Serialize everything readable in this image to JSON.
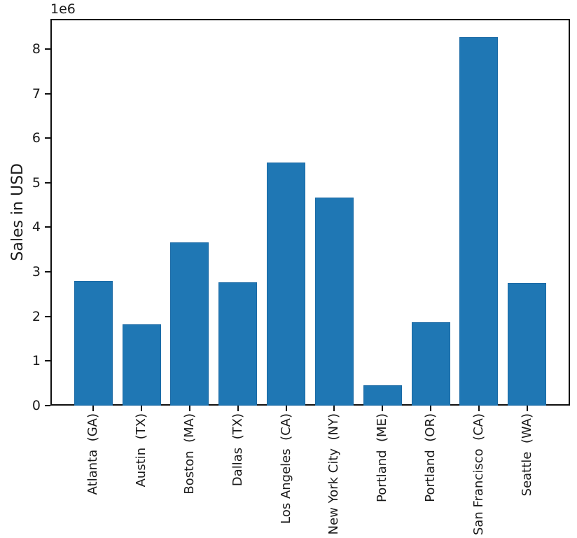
{
  "figure": {
    "offset_label": "1e6",
    "background_color": "#ffffff",
    "text_color": "#1a1a1a",
    "spine_color": "#0f0f0f"
  },
  "chart_data": {
    "type": "bar",
    "title": "",
    "xlabel": "",
    "ylabel": "Sales in USD",
    "categories": [
      "Atlanta  (GA)",
      "Austin  (TX)",
      "Boston  (MA)",
      "Dallas  (TX)",
      "Los Angeles  (CA)",
      "New York City  (NY)",
      "Portland  (ME)",
      "Portland  (OR)",
      "San Francisco  (CA)",
      "Seattle  (WA)"
    ],
    "values": [
      2795499,
      1819582,
      3661642,
      2767975,
      5452571,
      4664317,
      449758,
      1870732,
      8262204,
      2747755
    ],
    "ylim": [
      0,
      8675314
    ],
    "xlim": [
      -0.89,
      9.89
    ],
    "yticks": [
      0,
      1000000,
      2000000,
      3000000,
      4000000,
      5000000,
      6000000,
      7000000,
      8000000
    ],
    "ytick_labels": [
      "0",
      "1",
      "2",
      "3",
      "4",
      "5",
      "6",
      "7",
      "8"
    ],
    "ytick_multiplier": "1e6",
    "bar_width": 0.8,
    "bar_color": "#1f77b4",
    "bar_edge_color": "#1b6aa5",
    "grid": false,
    "legend_position": "none",
    "x_tick_rotation_deg": 90
  }
}
